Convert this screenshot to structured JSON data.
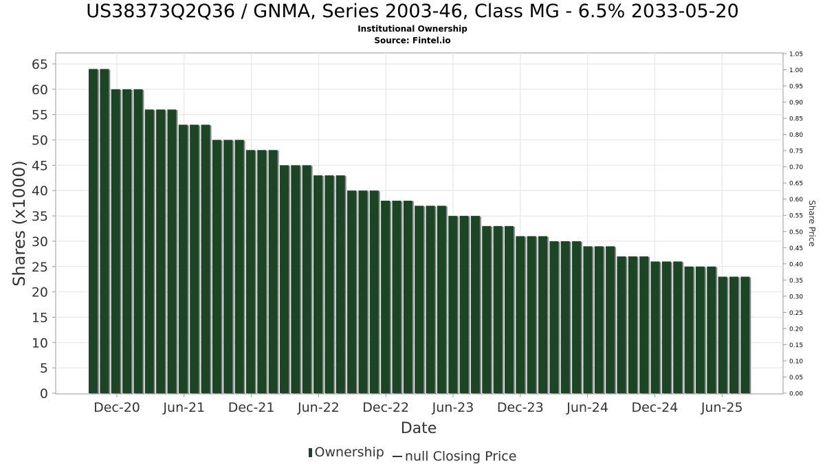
{
  "title": "US38373Q2Q36 / GNMA, Series 2003-46, Class MG - 6.5% 2033-05-20",
  "subtitle": "Institutional Ownership",
  "source": "Source: Fintel.io",
  "legend": {
    "ownership_label": "Ownership",
    "price_label": "null Closing Price"
  },
  "colors": {
    "bar": "#1b4525",
    "bar_shadow": "#8a8a8a",
    "grid": "#e2e2e2",
    "axis_text": "#333333",
    "price_line": "#333333"
  },
  "chart_data": {
    "type": "bar",
    "xlabel": "Date",
    "ylabel": "Shares (x1000)",
    "y2label": "Share Price",
    "ylim": [
      0,
      65
    ],
    "y2lim": [
      0,
      1.05
    ],
    "yticks": [
      0,
      5,
      10,
      15,
      20,
      25,
      30,
      35,
      40,
      45,
      50,
      55,
      60,
      65
    ],
    "y2ticks": [
      "0.00",
      "0.05",
      "0.10",
      "0.15",
      "0.20",
      "0.25",
      "0.30",
      "0.35",
      "0.40",
      "0.45",
      "0.50",
      "0.55",
      "0.60",
      "0.65",
      "0.70",
      "0.75",
      "0.80",
      "0.85",
      "0.90",
      "0.95",
      "1.00",
      "1.05"
    ],
    "xticks": [
      "Dec-20",
      "Jun-21",
      "Dec-21",
      "Jun-22",
      "Dec-22",
      "Jun-23",
      "Dec-23",
      "Jun-24",
      "Dec-24",
      "Jun-25"
    ],
    "grid": true,
    "legend_position": "bottom",
    "series": [
      {
        "name": "Ownership",
        "values": [
          64,
          64,
          60,
          60,
          60,
          56,
          56,
          56,
          53,
          53,
          53,
          50,
          50,
          50,
          48,
          48,
          48,
          45,
          45,
          45,
          43,
          43,
          43,
          40,
          40,
          40,
          38,
          38,
          38,
          37,
          37,
          37,
          35,
          35,
          35,
          33,
          33,
          33,
          31,
          31,
          31,
          30,
          30,
          30,
          29,
          29,
          29,
          27,
          27,
          27,
          26,
          26,
          26,
          25,
          25,
          25,
          23,
          23,
          23
        ]
      }
    ]
  }
}
